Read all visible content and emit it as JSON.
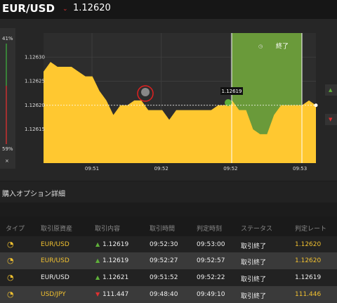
{
  "header": {
    "pair": "EUR/USD",
    "price": "1.12620"
  },
  "gauge": {
    "top": "41%",
    "bottom": "59%",
    "close": "×"
  },
  "chart_data": {
    "type": "area",
    "color": "#ffc830",
    "values": [
      1.12627,
      1.12629,
      1.12628,
      1.12628,
      1.12628,
      1.12627,
      1.12626,
      1.12626,
      1.12623,
      1.12621,
      1.12618,
      1.1262,
      1.1262,
      1.12621,
      1.12621,
      1.12619,
      1.12619,
      1.12619,
      1.12617,
      1.12619,
      1.12619,
      1.12619,
      1.12619,
      1.12619,
      1.12619,
      1.1262,
      1.1262,
      1.12621,
      1.12619,
      1.12619,
      1.12615,
      1.12614,
      1.12614,
      1.12618,
      1.1262,
      1.1262,
      1.1262,
      1.1262,
      1.12621,
      1.1262
    ],
    "ylim": [
      1.12608,
      1.12635
    ],
    "yticks": [
      {
        "value": 1.1263,
        "label": "1.12630"
      },
      1.12625,
      {
        "value": 1.1262,
        "label": "1.12620"
      },
      1.12615
    ],
    "x_labels": [
      "09:51",
      "09:52",
      "09:52",
      "09:53"
    ],
    "grid": true,
    "marker_label": "1.12619",
    "end_label": "終了"
  },
  "section_title": "購入オプション詳細",
  "table": {
    "columns": [
      "タイプ",
      "取引原資産",
      "取引内容",
      "取引時間",
      "判定時刻",
      "ステータス",
      "判定レート"
    ],
    "rows": [
      {
        "direction": "up",
        "cells": [
          "EUR/USD",
          "1.12619",
          "09:52:30",
          "09:53:00",
          "取引終了",
          "1.12620"
        ]
      },
      {
        "direction": "up",
        "cells": [
          "EUR/USD",
          "1.12619",
          "09:52:27",
          "09:52:57",
          "取引終了",
          "1.12620"
        ]
      },
      {
        "direction": "up",
        "cells": [
          "EUR/USD",
          "1.12621",
          "09:51:52",
          "09:52:22",
          "取引終了",
          "1.12619"
        ]
      },
      {
        "direction": "down",
        "cells": [
          "USD/JPY",
          "111.447",
          "09:48:40",
          "09:49:10",
          "取引終了",
          "111.446"
        ]
      }
    ]
  }
}
